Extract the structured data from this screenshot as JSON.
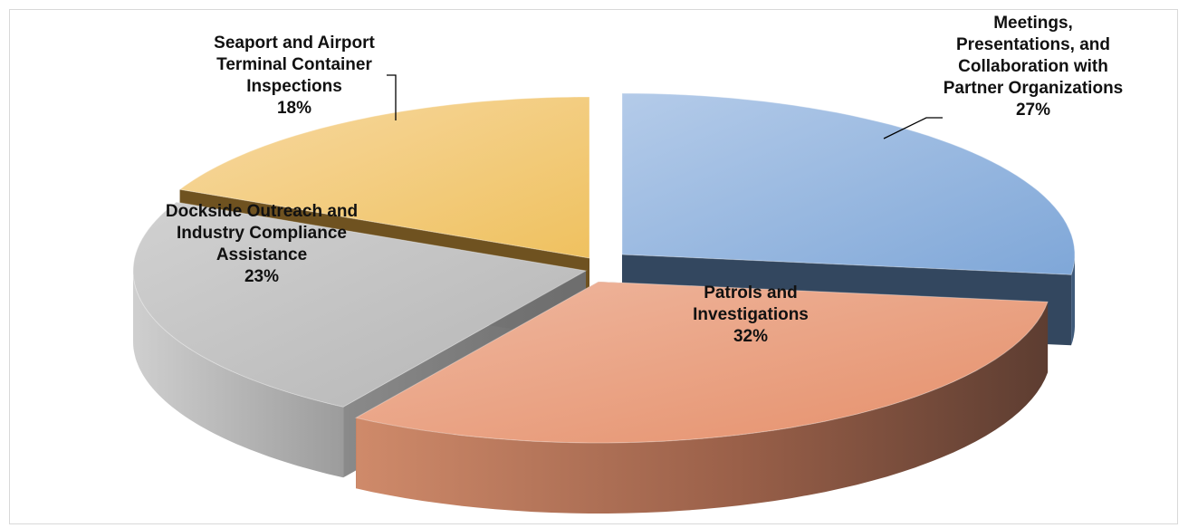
{
  "chart_data": {
    "type": "pie",
    "three_d": true,
    "exploded": true,
    "title": "",
    "slices": [
      {
        "label_lines": [
          "Meetings,",
          "Presentations, and",
          "Collaboration with",
          "Partner Organizations"
        ],
        "percent_label": "27%",
        "value": 27,
        "color": "#8fb3dd"
      },
      {
        "label_lines": [
          "Patrols and",
          "Investigations"
        ],
        "percent_label": "32%",
        "value": 32,
        "color": "#e89c7a"
      },
      {
        "label_lines": [
          "Dockside Outreach and",
          "Industry Compliance",
          "Assistance"
        ],
        "percent_label": "23%",
        "value": 23,
        "color": "#bdbdbd"
      },
      {
        "label_lines": [
          "Seaport and Airport",
          "Terminal Container",
          "Inspections"
        ],
        "percent_label": "18%",
        "value": 18,
        "color": "#f1c97a"
      }
    ],
    "legend": "none"
  }
}
